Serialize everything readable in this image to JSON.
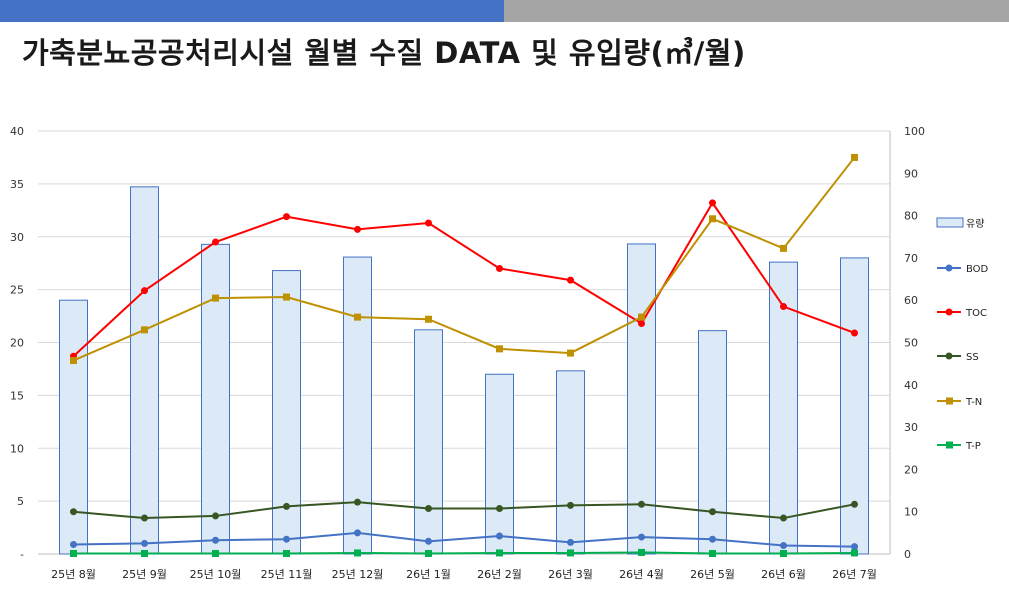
{
  "page": {
    "title": "가축분뇨공공처리시설 월별 수질 DATA 및 유입량(㎥/월)"
  },
  "colors": {
    "header_left": "#4472c4",
    "header_right": "#a5a5a5",
    "flow_fill": "#dce9f7",
    "flow_stroke": "#4472c4",
    "BOD": "#4472c4",
    "TOC": "#ff0000",
    "SS": "#375623",
    "T-N": "#bf9000",
    "T-P": "#00b050"
  },
  "chart_data": {
    "type": "bar+line",
    "categories": [
      "25년 8월",
      "25년 9월",
      "25년 10월",
      "25년 11월",
      "25년 12월",
      "26년 1월",
      "26년 2월",
      "26년 3월",
      "26년 4월",
      "26년 5월",
      "26년 6월",
      "26년 7월"
    ],
    "left_axis": {
      "ylim": [
        0,
        40
      ],
      "ticks": [
        "-",
        "5",
        "10",
        "15",
        "20",
        "25",
        "30",
        "35",
        "40"
      ]
    },
    "right_axis": {
      "ylim": [
        0,
        100
      ],
      "ticks": [
        "0",
        "10",
        "20",
        "30",
        "40",
        "50",
        "60",
        "70",
        "80",
        "90",
        "100"
      ]
    },
    "bars": {
      "name": "유량",
      "axis": "right",
      "values": [
        60,
        86.8,
        73.2,
        67,
        70.2,
        53,
        42.5,
        43.3,
        73.3,
        52.8,
        69,
        70
      ]
    },
    "series": [
      {
        "name": "BOD",
        "axis": "left",
        "marker": "circle",
        "values": [
          0.9,
          1.0,
          1.3,
          1.4,
          2.0,
          1.2,
          1.7,
          1.1,
          1.6,
          1.4,
          0.8,
          0.7
        ]
      },
      {
        "name": "TOC",
        "axis": "left",
        "marker": "circle",
        "values": [
          18.7,
          24.9,
          29.5,
          31.9,
          30.7,
          31.3,
          27.0,
          25.9,
          21.8,
          33.2,
          23.4,
          20.9
        ]
      },
      {
        "name": "SS",
        "axis": "left",
        "marker": "circle",
        "values": [
          4.0,
          3.4,
          3.6,
          4.5,
          4.9,
          4.3,
          4.3,
          4.6,
          4.7,
          4.0,
          3.4,
          4.7
        ]
      },
      {
        "name": "T-N",
        "axis": "left",
        "marker": "square",
        "values": [
          18.3,
          21.2,
          24.2,
          24.3,
          22.4,
          22.2,
          19.4,
          19.0,
          22.4,
          31.7,
          28.9,
          37.5
        ]
      },
      {
        "name": "T-P",
        "axis": "left",
        "marker": "square",
        "values": [
          0.05,
          0.05,
          0.05,
          0.05,
          0.1,
          0.05,
          0.1,
          0.1,
          0.15,
          0.05,
          0.05,
          0.1
        ]
      }
    ],
    "grid": true,
    "legend_position": "right"
  }
}
